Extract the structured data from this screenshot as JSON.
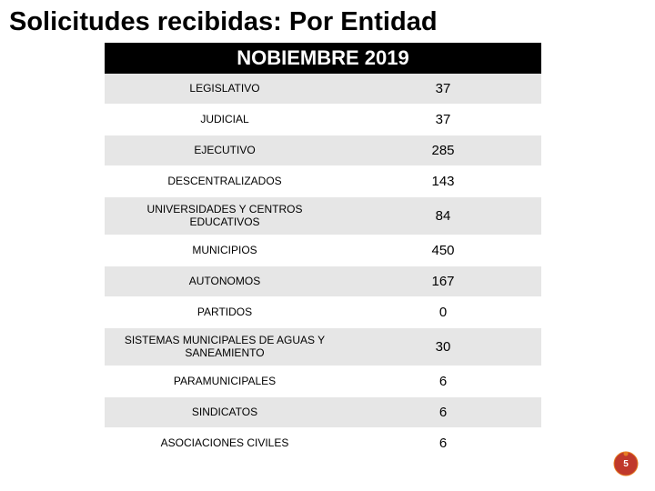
{
  "title": "Solicitudes recibidas: Por Entidad",
  "table_header": "NOBIEMBRE 2019",
  "rows": [
    {
      "label": "LEGISLATIVO",
      "value": "37",
      "alt": true
    },
    {
      "label": "JUDICIAL",
      "value": "37",
      "alt": false
    },
    {
      "label": "EJECUTIVO",
      "value": "285",
      "alt": true
    },
    {
      "label": "DESCENTRALIZADOS",
      "value": "143",
      "alt": false
    },
    {
      "label": "UNIVERSIDADES Y CENTROS EDUCATIVOS",
      "value": "84",
      "alt": true
    },
    {
      "label": "MUNICIPIOS",
      "value": "450",
      "alt": false
    },
    {
      "label": "AUTONOMOS",
      "value": "167",
      "alt": true
    },
    {
      "label": "PARTIDOS",
      "value": "0",
      "alt": false
    },
    {
      "label": "SISTEMAS MUNICIPALES DE AGUAS Y SANEAMIENTO",
      "value": "30",
      "alt": true
    },
    {
      "label": "PARAMUNICIPALES",
      "value": "6",
      "alt": false
    },
    {
      "label": "SINDICATOS",
      "value": "6",
      "alt": true
    },
    {
      "label": "ASOCIACIONES CIVILES",
      "value": "6",
      "alt": false
    }
  ],
  "page_number": "5",
  "colors": {
    "header_bg": "#000000",
    "header_text": "#ffffff",
    "alt_row_bg": "#e6e6e6",
    "badge_red": "#c0392b",
    "badge_orange": "#e67e22"
  }
}
